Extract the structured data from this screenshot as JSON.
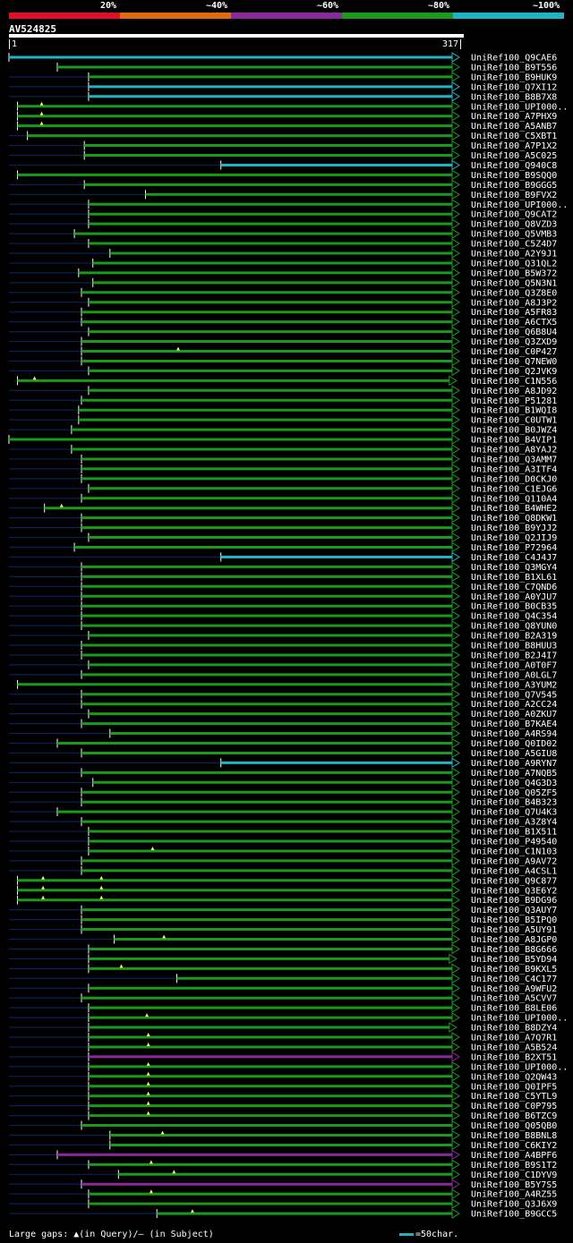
{
  "legend": {
    "labels": [
      "20%",
      "~40%",
      "~60%",
      "~80%",
      "~100%"
    ],
    "colors": [
      "#e0102a",
      "#e06a10",
      "#8a2a9a",
      "#1a9a1a",
      "#1fb4c4"
    ]
  },
  "query": {
    "id": "AV524825",
    "start": "1",
    "end": "317",
    "length": 317
  },
  "footer": {
    "gaps_text": "Large gaps: ▲(in Query)/– (in Subject)",
    "scale_text": "=50char."
  },
  "hits": [
    {
      "label": "UniRef100_Q9CAE6",
      "start": 1,
      "end": 317,
      "color": "cyan",
      "dark": 0,
      "marks": []
    },
    {
      "label": "UniRef100_B9T556",
      "start": 35,
      "end": 317,
      "color": "green",
      "dark": 0,
      "marks": []
    },
    {
      "label": "UniRef100_B9HUK9",
      "start": 57,
      "end": 317,
      "color": "green",
      "dark": 1,
      "marks": []
    },
    {
      "label": "UniRef100_Q7XI12",
      "start": 57,
      "end": 317,
      "color": "cyan",
      "dark": 1,
      "marks": []
    },
    {
      "label": "UniRef100_B8B7X8",
      "start": 57,
      "end": 317,
      "color": "cyan",
      "dark": 1,
      "marks": []
    },
    {
      "label": "UniRef100_UPI000..",
      "start": 7,
      "end": 317,
      "color": "green",
      "dark": 0,
      "marks": [
        24
      ]
    },
    {
      "label": "UniRef100_A7PHX9",
      "start": 7,
      "end": 317,
      "color": "green",
      "dark": 0,
      "marks": [
        24
      ]
    },
    {
      "label": "UniRef100_A5ANB7",
      "start": 7,
      "end": 317,
      "color": "green",
      "dark": 0,
      "marks": [
        24
      ]
    },
    {
      "label": "UniRef100_C5XBT1",
      "start": 14,
      "end": 317,
      "color": "green",
      "dark": 1,
      "marks": []
    },
    {
      "label": "UniRef100_A7P1X2",
      "start": 54,
      "end": 317,
      "color": "green",
      "dark": 1,
      "marks": []
    },
    {
      "label": "UniRef100_A5C025",
      "start": 54,
      "end": 317,
      "color": "green",
      "dark": 1,
      "marks": []
    },
    {
      "label": "UniRef100_Q940C8",
      "start": 150,
      "end": 317,
      "color": "cyan",
      "dark": 1,
      "marks": []
    },
    {
      "label": "UniRef100_B9SQQ0",
      "start": 7,
      "end": 317,
      "color": "green",
      "dark": 0,
      "marks": []
    },
    {
      "label": "UniRef100_B9GGG5",
      "start": 54,
      "end": 317,
      "color": "green",
      "dark": 1,
      "marks": []
    },
    {
      "label": "UniRef100_B9FVX2",
      "start": 97,
      "end": 317,
      "color": "green",
      "dark": 1,
      "marks": []
    },
    {
      "label": "UniRef100_UPI000..",
      "start": 57,
      "end": 317,
      "color": "green",
      "dark": 1,
      "marks": []
    },
    {
      "label": "UniRef100_Q9CAT2",
      "start": 57,
      "end": 317,
      "color": "green",
      "dark": 1,
      "marks": []
    },
    {
      "label": "UniRef100_Q8VZD3",
      "start": 57,
      "end": 317,
      "color": "green",
      "dark": 1,
      "marks": []
    },
    {
      "label": "UniRef100_Q5VMB3",
      "start": 47,
      "end": 317,
      "color": "green",
      "dark": 1,
      "marks": []
    },
    {
      "label": "UniRef100_C5Z4D7",
      "start": 57,
      "end": 317,
      "color": "green",
      "dark": 1,
      "marks": []
    },
    {
      "label": "UniRef100_A2Y9J1",
      "start": 72,
      "end": 317,
      "color": "green",
      "dark": 1,
      "marks": []
    },
    {
      "label": "UniRef100_Q31QL2",
      "start": 60,
      "end": 317,
      "color": "green",
      "dark": 1,
      "marks": []
    },
    {
      "label": "UniRef100_B5W372",
      "start": 50,
      "end": 317,
      "color": "green",
      "dark": 1,
      "marks": []
    },
    {
      "label": "UniRef100_Q5N3N1",
      "start": 60,
      "end": 317,
      "color": "green",
      "dark": 1,
      "marks": []
    },
    {
      "label": "UniRef100_Q3Z8E0",
      "start": 52,
      "end": 317,
      "color": "green",
      "dark": 1,
      "marks": []
    },
    {
      "label": "UniRef100_A8J3P2",
      "start": 57,
      "end": 317,
      "color": "green",
      "dark": 1,
      "marks": []
    },
    {
      "label": "UniRef100_A5FR83",
      "start": 52,
      "end": 317,
      "color": "green",
      "dark": 1,
      "marks": []
    },
    {
      "label": "UniRef100_A6CTX5",
      "start": 52,
      "end": 317,
      "color": "green",
      "dark": 1,
      "marks": []
    },
    {
      "label": "UniRef100_Q6B8U4",
      "start": 57,
      "end": 317,
      "color": "green",
      "dark": 1,
      "marks": []
    },
    {
      "label": "UniRef100_Q3ZXD9",
      "start": 52,
      "end": 317,
      "color": "green",
      "dark": 1,
      "marks": []
    },
    {
      "label": "UniRef100_C0P427",
      "start": 52,
      "end": 317,
      "color": "green",
      "dark": 1,
      "marks": [
        120
      ]
    },
    {
      "label": "UniRef100_Q7NEW0",
      "start": 52,
      "end": 317,
      "color": "green",
      "dark": 1,
      "marks": []
    },
    {
      "label": "UniRef100_Q2JVK9",
      "start": 57,
      "end": 317,
      "color": "green",
      "dark": 1,
      "marks": []
    },
    {
      "label": "UniRef100_C1N556",
      "start": 7,
      "end": 315,
      "color": "green",
      "dark": 0,
      "marks": [
        19
      ]
    },
    {
      "label": "UniRef100_A8JD92",
      "start": 57,
      "end": 317,
      "color": "green",
      "dark": 1,
      "marks": []
    },
    {
      "label": "UniRef100_P51281",
      "start": 52,
      "end": 317,
      "color": "green",
      "dark": 1,
      "marks": []
    },
    {
      "label": "UniRef100_B1WQI8",
      "start": 50,
      "end": 317,
      "color": "green",
      "dark": 1,
      "marks": []
    },
    {
      "label": "UniRef100_C0UTW1",
      "start": 50,
      "end": 317,
      "color": "green",
      "dark": 1,
      "marks": []
    },
    {
      "label": "UniRef100_B0JWZ4",
      "start": 45,
      "end": 317,
      "color": "green",
      "dark": 1,
      "marks": []
    },
    {
      "label": "UniRef100_B4VIP1",
      "start": 1,
      "end": 317,
      "color": "green",
      "dark": 0,
      "marks": []
    },
    {
      "label": "UniRef100_A8YAJ2",
      "start": 45,
      "end": 317,
      "color": "green",
      "dark": 1,
      "marks": []
    },
    {
      "label": "UniRef100_Q3AMM7",
      "start": 52,
      "end": 317,
      "color": "green",
      "dark": 1,
      "marks": []
    },
    {
      "label": "UniRef100_A3ITF4",
      "start": 52,
      "end": 317,
      "color": "green",
      "dark": 1,
      "marks": []
    },
    {
      "label": "UniRef100_D0CKJ0",
      "start": 52,
      "end": 317,
      "color": "green",
      "dark": 1,
      "marks": []
    },
    {
      "label": "UniRef100_C1EJG6",
      "start": 57,
      "end": 317,
      "color": "green",
      "dark": 1,
      "marks": []
    },
    {
      "label": "UniRef100_Q110A4",
      "start": 52,
      "end": 317,
      "color": "green",
      "dark": 1,
      "marks": []
    },
    {
      "label": "UniRef100_B4WHE2",
      "start": 26,
      "end": 317,
      "color": "green",
      "dark": 1,
      "marks": [
        38
      ]
    },
    {
      "label": "UniRef100_Q8DKW1",
      "start": 52,
      "end": 317,
      "color": "green",
      "dark": 1,
      "marks": []
    },
    {
      "label": "UniRef100_B9YJJ2",
      "start": 52,
      "end": 317,
      "color": "green",
      "dark": 1,
      "marks": []
    },
    {
      "label": "UniRef100_Q2JIJ9",
      "start": 57,
      "end": 317,
      "color": "green",
      "dark": 1,
      "marks": []
    },
    {
      "label": "UniRef100_P72964",
      "start": 47,
      "end": 317,
      "color": "green",
      "dark": 1,
      "marks": []
    },
    {
      "label": "UniRef100_C4J4J7",
      "start": 150,
      "end": 317,
      "color": "cyan",
      "dark": 1,
      "marks": []
    },
    {
      "label": "UniRef100_Q3MGY4",
      "start": 52,
      "end": 317,
      "color": "green",
      "dark": 1,
      "marks": []
    },
    {
      "label": "UniRef100_B1XL61",
      "start": 52,
      "end": 317,
      "color": "green",
      "dark": 1,
      "marks": []
    },
    {
      "label": "UniRef100_C7QND6",
      "start": 52,
      "end": 317,
      "color": "green",
      "dark": 1,
      "marks": []
    },
    {
      "label": "UniRef100_A0YJU7",
      "start": 52,
      "end": 317,
      "color": "green",
      "dark": 1,
      "marks": []
    },
    {
      "label": "UniRef100_B0CB35",
      "start": 52,
      "end": 317,
      "color": "green",
      "dark": 1,
      "marks": []
    },
    {
      "label": "UniRef100_Q4C354",
      "start": 52,
      "end": 317,
      "color": "green",
      "dark": 1,
      "marks": []
    },
    {
      "label": "UniRef100_Q8YUN0",
      "start": 52,
      "end": 317,
      "color": "green",
      "dark": 1,
      "marks": []
    },
    {
      "label": "UniRef100_B2A319",
      "start": 57,
      "end": 317,
      "color": "green",
      "dark": 1,
      "marks": []
    },
    {
      "label": "UniRef100_B8HUU3",
      "start": 52,
      "end": 317,
      "color": "green",
      "dark": 1,
      "marks": []
    },
    {
      "label": "UniRef100_B2J4I7",
      "start": 52,
      "end": 317,
      "color": "green",
      "dark": 1,
      "marks": []
    },
    {
      "label": "UniRef100_A0T0F7",
      "start": 57,
      "end": 317,
      "color": "green",
      "dark": 1,
      "marks": []
    },
    {
      "label": "UniRef100_A0LGL7",
      "start": 52,
      "end": 317,
      "color": "green",
      "dark": 1,
      "marks": []
    },
    {
      "label": "UniRef100_A3YUM2",
      "start": 7,
      "end": 317,
      "color": "green",
      "dark": 0,
      "marks": []
    },
    {
      "label": "UniRef100_Q7V545",
      "start": 52,
      "end": 317,
      "color": "green",
      "dark": 1,
      "marks": []
    },
    {
      "label": "UniRef100_A2CC24",
      "start": 52,
      "end": 317,
      "color": "green",
      "dark": 1,
      "marks": []
    },
    {
      "label": "UniRef100_A0ZKU7",
      "start": 57,
      "end": 317,
      "color": "green",
      "dark": 1,
      "marks": []
    },
    {
      "label": "UniRef100_B7KAE4",
      "start": 52,
      "end": 317,
      "color": "green",
      "dark": 1,
      "marks": []
    },
    {
      "label": "UniRef100_A4RS94",
      "start": 72,
      "end": 317,
      "color": "green",
      "dark": 1,
      "marks": []
    },
    {
      "label": "UniRef100_Q0ID02",
      "start": 35,
      "end": 317,
      "color": "green",
      "dark": 1,
      "marks": []
    },
    {
      "label": "UniRef100_A5GIU8",
      "start": 52,
      "end": 317,
      "color": "green",
      "dark": 1,
      "marks": []
    },
    {
      "label": "UniRef100_A9RYN7",
      "start": 150,
      "end": 317,
      "color": "cyan",
      "dark": 1,
      "marks": []
    },
    {
      "label": "UniRef100_A7NQB5",
      "start": 52,
      "end": 317,
      "color": "green",
      "dark": 1,
      "marks": []
    },
    {
      "label": "UniRef100_Q4G3D3",
      "start": 60,
      "end": 317,
      "color": "green",
      "dark": 1,
      "marks": []
    },
    {
      "label": "UniRef100_Q05ZF5",
      "start": 52,
      "end": 317,
      "color": "green",
      "dark": 1,
      "marks": []
    },
    {
      "label": "UniRef100_B4B323",
      "start": 52,
      "end": 317,
      "color": "green",
      "dark": 1,
      "marks": []
    },
    {
      "label": "UniRef100_Q7U4K3",
      "start": 35,
      "end": 317,
      "color": "green",
      "dark": 1,
      "marks": []
    },
    {
      "label": "UniRef100_A3Z8Y4",
      "start": 52,
      "end": 317,
      "color": "green",
      "dark": 1,
      "marks": []
    },
    {
      "label": "UniRef100_B1X511",
      "start": 57,
      "end": 317,
      "color": "green",
      "dark": 1,
      "marks": []
    },
    {
      "label": "UniRef100_P49540",
      "start": 57,
      "end": 317,
      "color": "green",
      "dark": 1,
      "marks": []
    },
    {
      "label": "UniRef100_C1N103",
      "start": 57,
      "end": 317,
      "color": "green",
      "dark": 1,
      "marks": [
        102
      ]
    },
    {
      "label": "UniRef100_A9AV72",
      "start": 52,
      "end": 317,
      "color": "green",
      "dark": 1,
      "marks": []
    },
    {
      "label": "UniRef100_A4CSL1",
      "start": 52,
      "end": 317,
      "color": "green",
      "dark": 1,
      "marks": []
    },
    {
      "label": "UniRef100_Q9C877",
      "start": 7,
      "end": 317,
      "color": "green",
      "dark": 0,
      "marks": [
        25,
        66
      ]
    },
    {
      "label": "UniRef100_Q3E6Y2",
      "start": 7,
      "end": 317,
      "color": "green",
      "dark": 0,
      "marks": [
        25,
        66
      ]
    },
    {
      "label": "UniRef100_B9DG96",
      "start": 7,
      "end": 317,
      "color": "green",
      "dark": 0,
      "marks": [
        25,
        66
      ]
    },
    {
      "label": "UniRef100_Q3AUY7",
      "start": 52,
      "end": 317,
      "color": "green",
      "dark": 1,
      "marks": []
    },
    {
      "label": "UniRef100_B5IPQ0",
      "start": 52,
      "end": 317,
      "color": "green",
      "dark": 1,
      "marks": []
    },
    {
      "label": "UniRef100_A5UY91",
      "start": 52,
      "end": 317,
      "color": "green",
      "dark": 1,
      "marks": []
    },
    {
      "label": "UniRef100_A8JGP0",
      "start": 75,
      "end": 317,
      "color": "green",
      "dark": 1,
      "marks": [
        110
      ]
    },
    {
      "label": "UniRef100_B8G666",
      "start": 57,
      "end": 317,
      "color": "green",
      "dark": 1,
      "marks": []
    },
    {
      "label": "UniRef100_B5YD94",
      "start": 57,
      "end": 315,
      "color": "green",
      "dark": 1,
      "marks": []
    },
    {
      "label": "UniRef100_B9KXL5",
      "start": 57,
      "end": 317,
      "color": "green",
      "dark": 1,
      "marks": [
        80
      ]
    },
    {
      "label": "UniRef100_C4C177",
      "start": 119,
      "end": 317,
      "color": "green",
      "dark": 1,
      "marks": []
    },
    {
      "label": "UniRef100_A9WFU2",
      "start": 57,
      "end": 317,
      "color": "green",
      "dark": 1,
      "marks": []
    },
    {
      "label": "UniRef100_A5CVV7",
      "start": 52,
      "end": 317,
      "color": "green",
      "dark": 1,
      "marks": []
    },
    {
      "label": "UniRef100_B8LE06",
      "start": 57,
      "end": 317,
      "color": "green",
      "dark": 1,
      "marks": []
    },
    {
      "label": "UniRef100_UPI000..",
      "start": 57,
      "end": 317,
      "color": "green",
      "dark": 1,
      "marks": [
        98
      ]
    },
    {
      "label": "UniRef100_B8DZY4",
      "start": 57,
      "end": 315,
      "color": "green",
      "dark": 1,
      "marks": []
    },
    {
      "label": "UniRef100_A7Q7R1",
      "start": 57,
      "end": 317,
      "color": "green",
      "dark": 1,
      "marks": [
        99
      ]
    },
    {
      "label": "UniRef100_A5B524",
      "start": 57,
      "end": 317,
      "color": "green",
      "dark": 1,
      "marks": [
        99
      ]
    },
    {
      "label": "UniRef100_B2XT51",
      "start": 57,
      "end": 317,
      "color": "purple",
      "dark": 1,
      "marks": []
    },
    {
      "label": "UniRef100_UPI000..",
      "start": 57,
      "end": 317,
      "color": "green",
      "dark": 1,
      "marks": [
        99
      ]
    },
    {
      "label": "UniRef100_Q2QW43",
      "start": 57,
      "end": 317,
      "color": "green",
      "dark": 1,
      "marks": [
        99
      ]
    },
    {
      "label": "UniRef100_Q0IPF5",
      "start": 57,
      "end": 317,
      "color": "green",
      "dark": 1,
      "marks": [
        99
      ]
    },
    {
      "label": "UniRef100_C5YTL9",
      "start": 57,
      "end": 317,
      "color": "green",
      "dark": 1,
      "marks": [
        99
      ]
    },
    {
      "label": "UniRef100_C0P795",
      "start": 57,
      "end": 317,
      "color": "green",
      "dark": 1,
      "marks": [
        99
      ]
    },
    {
      "label": "UniRef100_B6TZC9",
      "start": 57,
      "end": 317,
      "color": "green",
      "dark": 1,
      "marks": [
        99
      ]
    },
    {
      "label": "UniRef100_Q05QB0",
      "start": 52,
      "end": 317,
      "color": "green",
      "dark": 1,
      "marks": []
    },
    {
      "label": "UniRef100_B8BNL8",
      "start": 72,
      "end": 317,
      "color": "green",
      "dark": 1,
      "marks": [
        109
      ]
    },
    {
      "label": "UniRef100_C6KIY2",
      "start": 72,
      "end": 317,
      "color": "green",
      "dark": 1,
      "marks": []
    },
    {
      "label": "UniRef100_A4BPF6",
      "start": 35,
      "end": 317,
      "color": "purple",
      "dark": 1,
      "marks": []
    },
    {
      "label": "UniRef100_B9S1T2",
      "start": 57,
      "end": 317,
      "color": "green",
      "dark": 1,
      "marks": [
        101
      ]
    },
    {
      "label": "UniRef100_C1DYV9",
      "start": 78,
      "end": 317,
      "color": "green",
      "dark": 1,
      "marks": [
        117
      ]
    },
    {
      "label": "UniRef100_B5Y7S5",
      "start": 52,
      "end": 317,
      "color": "purple",
      "dark": 1,
      "marks": []
    },
    {
      "label": "UniRef100_A4RZ55",
      "start": 57,
      "end": 317,
      "color": "green",
      "dark": 1,
      "marks": [
        101
      ]
    },
    {
      "label": "UniRef100_Q3J6X9",
      "start": 57,
      "end": 317,
      "color": "green",
      "dark": 1,
      "marks": []
    },
    {
      "label": "UniRef100_B9GCC5",
      "start": 105,
      "end": 317,
      "color": "green",
      "dark": 1,
      "marks": [
        130
      ]
    }
  ]
}
